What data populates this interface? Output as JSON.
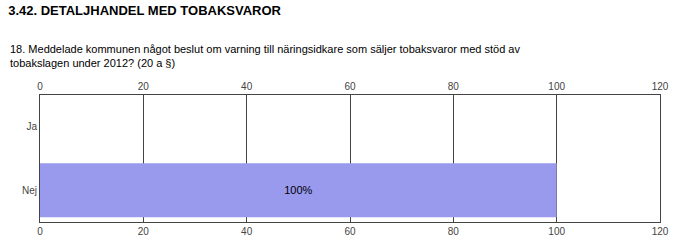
{
  "chart_data": {
    "type": "bar",
    "orientation": "horizontal",
    "title": "3.42. DETALJHANDEL MED TOBAKSVAROR",
    "subtitle": "18. Meddelade kommunen något beslut om varning till näringsidkare som säljer tobaksvaror med stöd av\ntobakslagen under 2012? (20 a §)",
    "categories": [
      "Nej",
      "Ja"
    ],
    "values": [
      100,
      0
    ],
    "value_labels": [
      "100%",
      null
    ],
    "data_labels": true,
    "color": "#9999ee",
    "xlim": [
      0,
      120
    ],
    "xticks": [
      0,
      20,
      40,
      60,
      80,
      100,
      120
    ],
    "grid": true
  }
}
